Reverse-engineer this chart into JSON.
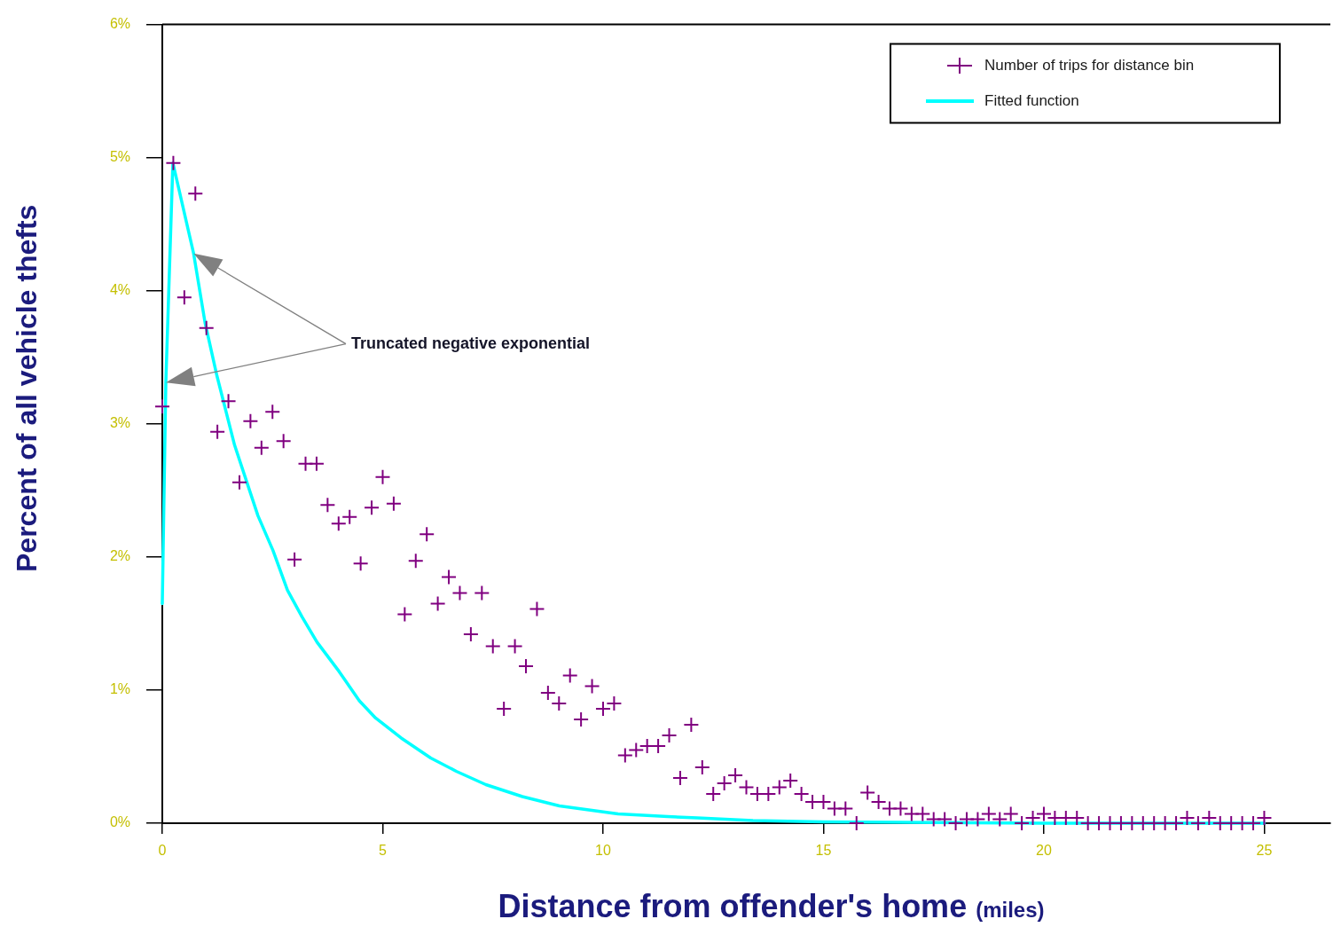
{
  "chart_data": {
    "type": "scatter",
    "xlabel": "Distance from offender's home (miles)",
    "ylabel": "Percent of all vehicle thefts",
    "series": [
      {
        "name": "Number of trips for distance bin",
        "type": "scatter",
        "color": "#800080",
        "marker": "cross",
        "x": [
          0,
          0.25,
          0.5,
          0.75,
          1,
          1.25,
          1.5,
          1.75,
          2,
          2.25,
          2.5,
          2.75,
          3,
          3.25,
          3.5,
          3.75,
          4,
          4.25,
          4.5,
          4.75,
          5,
          5.25,
          5.5,
          5.75,
          6,
          6.25,
          6.5,
          6.75,
          7,
          7.25,
          7.5,
          7.75,
          8,
          8.25,
          8.5,
          8.75,
          9,
          9.25,
          9.5,
          9.75,
          10,
          10.25,
          10.5,
          10.75,
          11,
          11.25,
          11.5,
          11.75,
          12,
          12.25,
          12.5,
          12.75,
          13,
          13.25,
          13.5,
          13.75,
          14,
          14.25,
          14.5,
          14.75,
          15,
          15.25,
          15.5,
          15.75,
          16,
          16.25,
          16.5,
          16.75,
          17,
          17.25,
          17.5,
          17.75,
          18,
          18.25,
          18.5,
          18.75,
          19,
          19.25,
          19.5,
          19.75,
          20,
          20.25,
          20.5,
          20.75,
          21,
          21.25,
          21.5,
          21.75,
          22,
          22.25,
          22.5,
          22.75,
          23,
          23.25,
          23.5,
          23.75,
          24,
          24.25,
          24.5,
          24.75,
          25
        ],
        "values": [
          3.13,
          4.96,
          3.95,
          4.73,
          3.72,
          2.94,
          3.17,
          2.56,
          3.02,
          2.82,
          3.09,
          2.87,
          1.98,
          2.7,
          2.7,
          2.39,
          2.25,
          2.3,
          1.95,
          2.37,
          2.6,
          2.4,
          1.57,
          1.97,
          2.17,
          1.65,
          1.85,
          1.73,
          1.42,
          1.73,
          1.33,
          0.86,
          1.33,
          1.18,
          1.61,
          0.98,
          0.9,
          1.11,
          0.78,
          1.03,
          0.86,
          0.9,
          0.51,
          0.55,
          0.58,
          0.58,
          0.66,
          0.34,
          0.74,
          0.42,
          0.22,
          0.3,
          0.36,
          0.27,
          0.22,
          0.22,
          0.27,
          0.32,
          0.22,
          0.16,
          0.16,
          0.11,
          0.11,
          0,
          0.23,
          0.16,
          0.11,
          0.11,
          0.07,
          0.07,
          0.03,
          0.03,
          0,
          0.03,
          0.03,
          0.07,
          0.03,
          0.07,
          0,
          0.04,
          0.07,
          0.04,
          0.04,
          0.04,
          0,
          0,
          0,
          0,
          0,
          0,
          0,
          0,
          0,
          0.04,
          0,
          0.04,
          0,
          0,
          0,
          0,
          0.04
        ]
      },
      {
        "name": "Fitted function",
        "type": "line",
        "color": "#00ffff",
        "marker": "none",
        "x": [
          0,
          0.08,
          0.24,
          0.71,
          0.97,
          1.24,
          1.64,
          2.17,
          2.51,
          2.84,
          3.17,
          3.51,
          4.01,
          4.47,
          4.84,
          5.42,
          6.09,
          6.67,
          7.34,
          8.17,
          9.01,
          10.34,
          11.47,
          12.14,
          13.4,
          15,
          20,
          25
        ],
        "values": [
          1.65,
          3.31,
          4.96,
          4.28,
          3.76,
          3.36,
          2.84,
          2.31,
          2.05,
          1.75,
          1.55,
          1.36,
          1.14,
          0.92,
          0.79,
          0.64,
          0.49,
          0.39,
          0.29,
          0.2,
          0.13,
          0.07,
          0.05,
          0.04,
          0.02,
          0.01,
          0,
          0
        ]
      }
    ],
    "xlim": [
      0,
      26.5
    ],
    "ylim": [
      0,
      6
    ],
    "xticks": [
      0,
      5,
      10,
      15,
      20,
      25
    ],
    "yticks": [
      {
        "value": 0,
        "label": "0%"
      },
      {
        "value": 1,
        "label": "1%"
      },
      {
        "value": 2,
        "label": "2%"
      },
      {
        "value": 3,
        "label": "3%"
      },
      {
        "value": 4,
        "label": "4%"
      },
      {
        "value": 5,
        "label": "5%"
      },
      {
        "value": 6,
        "label": "6%"
      }
    ],
    "grid": false,
    "legend": "top right",
    "annotations": [
      "Truncated negative exponential"
    ]
  }
}
